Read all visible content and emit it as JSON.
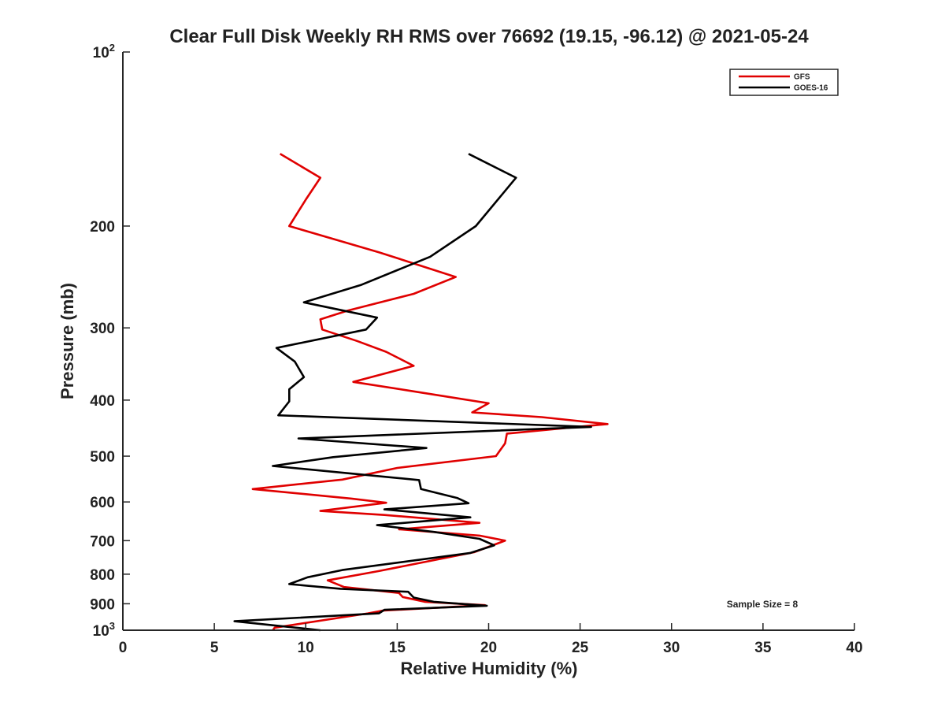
{
  "chart_data": {
    "type": "line",
    "title": "Clear Full Disk Weekly RH RMS over 76692 (19.15, -96.12) @ 2021-05-24",
    "xlabel": "Relative Humidity (%)",
    "ylabel": "Pressure (mb)",
    "xlim": [
      0,
      40
    ],
    "ylim": [
      100,
      1000
    ],
    "yscale": "log",
    "y_reversed": true,
    "x_ticks": [
      0,
      5,
      10,
      15,
      20,
      25,
      30,
      35,
      40
    ],
    "x_tick_labels": [
      "0",
      "5",
      "10",
      "15",
      "20",
      "25",
      "30",
      "35",
      "40"
    ],
    "y_ticks": [
      100,
      200,
      300,
      400,
      500,
      600,
      700,
      800,
      900,
      1000
    ],
    "y_tick_labels": [
      {
        "base": "10",
        "exp": "2"
      },
      {
        "base": "200"
      },
      {
        "base": "300"
      },
      {
        "base": "400"
      },
      {
        "base": "500"
      },
      {
        "base": "600"
      },
      {
        "base": "700"
      },
      {
        "base": "800"
      },
      {
        "base": "900"
      },
      {
        "base": "10",
        "exp": "3"
      }
    ],
    "legend_position": "top-right",
    "annotation": "Sample Size = 8",
    "series": [
      {
        "name": "GFS",
        "color": "#e00000",
        "points": [
          [
            8.6,
            150
          ],
          [
            10.8,
            165
          ],
          [
            10.0,
            180
          ],
          [
            9.1,
            200
          ],
          [
            14.0,
            222
          ],
          [
            18.2,
            245
          ],
          [
            15.9,
            262
          ],
          [
            12.3,
            280
          ],
          [
            10.8,
            290
          ],
          [
            10.9,
            302
          ],
          [
            12.8,
            316
          ],
          [
            14.4,
            330
          ],
          [
            15.9,
            349
          ],
          [
            12.6,
            372
          ],
          [
            15.6,
            385
          ],
          [
            20.0,
            405
          ],
          [
            19.1,
            420
          ],
          [
            22.9,
            428
          ],
          [
            26.5,
            440
          ],
          [
            21.0,
            457
          ],
          [
            20.9,
            475
          ],
          [
            20.4,
            500
          ],
          [
            15.0,
            524
          ],
          [
            12.0,
            549
          ],
          [
            7.1,
            570
          ],
          [
            12.5,
            592
          ],
          [
            14.4,
            602
          ],
          [
            10.8,
            622
          ],
          [
            14.3,
            632
          ],
          [
            19.5,
            652
          ],
          [
            15.1,
            669
          ],
          [
            19.5,
            686
          ],
          [
            20.9,
            700
          ],
          [
            19.2,
            733
          ],
          [
            14.0,
            790
          ],
          [
            11.2,
            820
          ],
          [
            12.1,
            842
          ],
          [
            15.1,
            862
          ],
          [
            15.3,
            876
          ],
          [
            16.5,
            893
          ],
          [
            19.8,
            905
          ],
          [
            14.2,
            925
          ],
          [
            13.4,
            935
          ],
          [
            8.3,
            990
          ],
          [
            8.2,
            1000
          ]
        ]
      },
      {
        "name": "GOES-16",
        "color": "#000000",
        "points": [
          [
            18.9,
            150
          ],
          [
            21.5,
            165
          ],
          [
            19.3,
            200
          ],
          [
            16.8,
            226
          ],
          [
            13.0,
            253
          ],
          [
            9.9,
            271
          ],
          [
            13.9,
            288
          ],
          [
            13.3,
            302
          ],
          [
            8.4,
            325
          ],
          [
            9.4,
            343
          ],
          [
            9.9,
            365
          ],
          [
            9.1,
            383
          ],
          [
            9.1,
            402
          ],
          [
            8.5,
            425
          ],
          [
            25.6,
            445
          ],
          [
            9.6,
            466
          ],
          [
            16.6,
            484
          ],
          [
            11.5,
            502
          ],
          [
            8.2,
            520
          ],
          [
            16.2,
            550
          ],
          [
            16.3,
            570
          ],
          [
            18.3,
            591
          ],
          [
            18.9,
            603
          ],
          [
            14.3,
            618
          ],
          [
            19.0,
            638
          ],
          [
            13.9,
            658
          ],
          [
            17.0,
            676
          ],
          [
            19.5,
            695
          ],
          [
            20.3,
            713
          ],
          [
            19.0,
            735
          ],
          [
            12.0,
            787
          ],
          [
            10.1,
            810
          ],
          [
            9.1,
            832
          ],
          [
            11.9,
            848
          ],
          [
            15.6,
            858
          ],
          [
            15.9,
            878
          ],
          [
            17.0,
            893
          ],
          [
            19.9,
            907
          ],
          [
            14.3,
            922
          ],
          [
            14.0,
            935
          ],
          [
            6.1,
            965
          ],
          [
            10.8,
            1000
          ]
        ]
      }
    ]
  }
}
